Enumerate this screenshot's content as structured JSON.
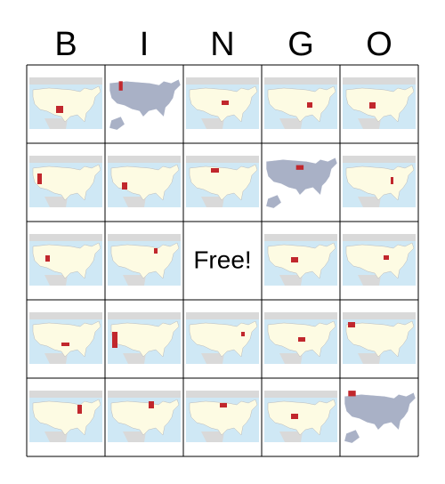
{
  "header": {
    "letters": [
      "B",
      "I",
      "N",
      "G",
      "O"
    ]
  },
  "free": "Free!"
}
